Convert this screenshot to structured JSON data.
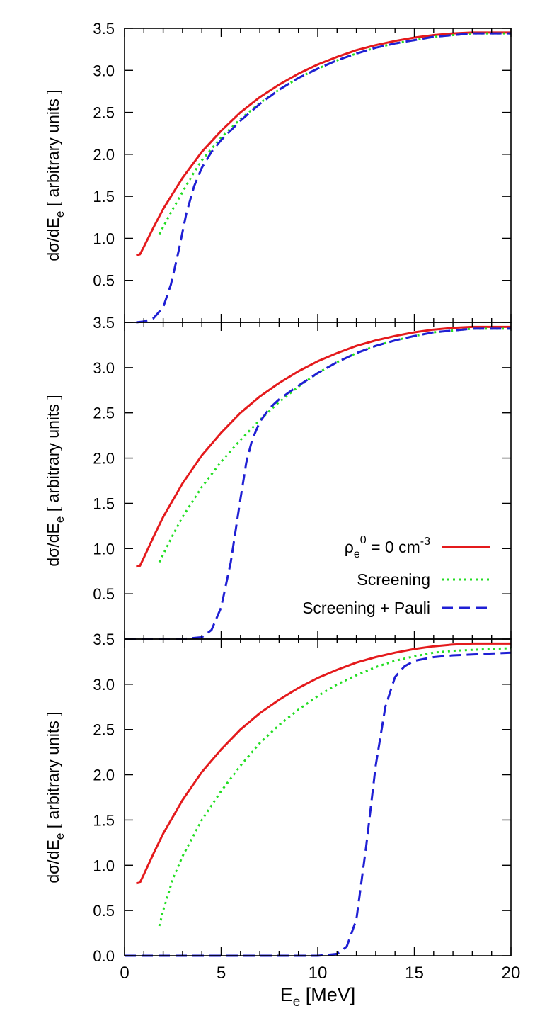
{
  "chart_data": {
    "type": "line",
    "shared_x_axis": {
      "label_main": "E",
      "label_sub": "e",
      "label_unit": " [MeV]",
      "range": [
        0,
        20
      ],
      "ticks": [
        "0",
        "5",
        "10",
        "15",
        "20"
      ]
    },
    "ylabel": {
      "main": "dσ/dE",
      "sub": "e",
      "suffix": " [ arbitrary units ]"
    },
    "legend": {
      "placement": "inside middle panel, lower-right",
      "entries": [
        {
          "key": "s0",
          "parts": [
            "ρ",
            "e",
            "0",
            " = 0 cm",
            "-3"
          ]
        },
        {
          "key": "s1",
          "text": "Screening"
        },
        {
          "key": "s2",
          "text": "Screening + Pauli"
        }
      ]
    },
    "series_styles": [
      {
        "key": "s0",
        "color": "#e41a1c",
        "dash": "solid"
      },
      {
        "key": "s1",
        "color": "#22dd22",
        "dash": "dotted"
      },
      {
        "key": "s2",
        "color": "#1f1fd4",
        "dash": "dashed"
      }
    ],
    "panels": [
      {
        "ylim": [
          0,
          3.5
        ],
        "yticks": [
          "3.5",
          "3.0",
          "2.5",
          "2.0",
          "1.5",
          "1.0",
          "0.5"
        ],
        "series": [
          {
            "key": "s0",
            "points": [
              [
                0.6,
                0.8
              ],
              [
                0.8,
                0.81
              ],
              [
                1,
                0.9
              ],
              [
                1.5,
                1.13
              ],
              [
                2,
                1.35
              ],
              [
                3,
                1.72
              ],
              [
                4,
                2.03
              ],
              [
                5,
                2.28
              ],
              [
                6,
                2.5
              ],
              [
                7,
                2.68
              ],
              [
                8,
                2.83
              ],
              [
                9,
                2.96
              ],
              [
                10,
                3.07
              ],
              [
                11,
                3.16
              ],
              [
                12,
                3.24
              ],
              [
                13,
                3.3
              ],
              [
                14,
                3.35
              ],
              [
                15,
                3.39
              ],
              [
                16,
                3.42
              ],
              [
                17,
                3.44
              ],
              [
                18,
                3.45
              ],
              [
                19,
                3.45
              ],
              [
                20,
                3.45
              ]
            ]
          },
          {
            "key": "s1",
            "points": [
              [
                1.8,
                1.05
              ],
              [
                2.5,
                1.35
              ],
              [
                3,
                1.55
              ],
              [
                3.5,
                1.75
              ],
              [
                4,
                1.93
              ],
              [
                5,
                2.2
              ],
              [
                6,
                2.42
              ],
              [
                7,
                2.61
              ],
              [
                8,
                2.77
              ],
              [
                9,
                2.91
              ],
              [
                10,
                3.02
              ],
              [
                11,
                3.12
              ],
              [
                12,
                3.2
              ],
              [
                13,
                3.27
              ],
              [
                14,
                3.32
              ],
              [
                15,
                3.36
              ],
              [
                16,
                3.4
              ],
              [
                17,
                3.42
              ],
              [
                18,
                3.44
              ],
              [
                19,
                3.44
              ],
              [
                20,
                3.44
              ]
            ]
          },
          {
            "key": "s2",
            "points": [
              [
                0.6,
                0.0
              ],
              [
                1,
                0.01
              ],
              [
                1.5,
                0.05
              ],
              [
                2,
                0.18
              ],
              [
                2.4,
                0.45
              ],
              [
                2.8,
                0.85
              ],
              [
                3.2,
                1.3
              ],
              [
                3.6,
                1.62
              ],
              [
                4,
                1.84
              ],
              [
                4.5,
                2.03
              ],
              [
                5,
                2.17
              ],
              [
                6,
                2.4
              ],
              [
                7,
                2.6
              ],
              [
                8,
                2.77
              ],
              [
                9,
                2.91
              ],
              [
                10,
                3.02
              ],
              [
                11,
                3.12
              ],
              [
                12,
                3.2
              ],
              [
                13,
                3.27
              ],
              [
                14,
                3.32
              ],
              [
                15,
                3.36
              ],
              [
                16,
                3.4
              ],
              [
                17,
                3.42
              ],
              [
                18,
                3.44
              ],
              [
                19,
                3.44
              ],
              [
                20,
                3.44
              ]
            ]
          }
        ]
      },
      {
        "ylim": [
          0,
          3.5
        ],
        "yticks": [
          "3.5",
          "3.0",
          "2.5",
          "2.0",
          "1.5",
          "1.0",
          "0.5"
        ],
        "series": [
          {
            "key": "s0",
            "points": [
              [
                0.6,
                0.8
              ],
              [
                0.8,
                0.81
              ],
              [
                1,
                0.9
              ],
              [
                1.5,
                1.13
              ],
              [
                2,
                1.35
              ],
              [
                3,
                1.72
              ],
              [
                4,
                2.03
              ],
              [
                5,
                2.28
              ],
              [
                6,
                2.5
              ],
              [
                7,
                2.68
              ],
              [
                8,
                2.83
              ],
              [
                9,
                2.96
              ],
              [
                10,
                3.07
              ],
              [
                11,
                3.16
              ],
              [
                12,
                3.24
              ],
              [
                13,
                3.3
              ],
              [
                14,
                3.35
              ],
              [
                15,
                3.39
              ],
              [
                16,
                3.42
              ],
              [
                17,
                3.44
              ],
              [
                18,
                3.45
              ],
              [
                19,
                3.45
              ],
              [
                20,
                3.45
              ]
            ]
          },
          {
            "key": "s1",
            "points": [
              [
                1.8,
                0.85
              ],
              [
                2.5,
                1.15
              ],
              [
                3,
                1.35
              ],
              [
                4,
                1.68
              ],
              [
                5,
                1.96
              ],
              [
                6,
                2.2
              ],
              [
                7,
                2.42
              ],
              [
                8,
                2.62
              ],
              [
                9,
                2.79
              ],
              [
                10,
                2.94
              ],
              [
                11,
                3.06
              ],
              [
                12,
                3.16
              ],
              [
                13,
                3.24
              ],
              [
                14,
                3.3
              ],
              [
                15,
                3.35
              ],
              [
                16,
                3.39
              ],
              [
                17,
                3.41
              ],
              [
                18,
                3.43
              ],
              [
                19,
                3.43
              ],
              [
                20,
                3.43
              ]
            ]
          },
          {
            "key": "s2",
            "points": [
              [
                0,
                0.0
              ],
              [
                3,
                0.0
              ],
              [
                4,
                0.02
              ],
              [
                4.5,
                0.1
              ],
              [
                5,
                0.35
              ],
              [
                5.5,
                0.85
              ],
              [
                6,
                1.55
              ],
              [
                6.3,
                1.95
              ],
              [
                6.6,
                2.2
              ],
              [
                7,
                2.4
              ],
              [
                7.5,
                2.55
              ],
              [
                8,
                2.65
              ],
              [
                9,
                2.8
              ],
              [
                10,
                2.94
              ],
              [
                11,
                3.06
              ],
              [
                12,
                3.16
              ],
              [
                13,
                3.24
              ],
              [
                14,
                3.3
              ],
              [
                15,
                3.35
              ],
              [
                16,
                3.39
              ],
              [
                17,
                3.41
              ],
              [
                18,
                3.43
              ],
              [
                19,
                3.43
              ],
              [
                20,
                3.43
              ]
            ]
          }
        ]
      },
      {
        "ylim": [
          0,
          3.5
        ],
        "yticks": [
          "3.5",
          "3.0",
          "2.5",
          "2.0",
          "1.5",
          "1.0",
          "0.5",
          "0.0"
        ],
        "series": [
          {
            "key": "s0",
            "points": [
              [
                0.6,
                0.8
              ],
              [
                0.8,
                0.81
              ],
              [
                1,
                0.9
              ],
              [
                1.5,
                1.13
              ],
              [
                2,
                1.35
              ],
              [
                3,
                1.72
              ],
              [
                4,
                2.03
              ],
              [
                5,
                2.28
              ],
              [
                6,
                2.5
              ],
              [
                7,
                2.68
              ],
              [
                8,
                2.83
              ],
              [
                9,
                2.96
              ],
              [
                10,
                3.07
              ],
              [
                11,
                3.16
              ],
              [
                12,
                3.24
              ],
              [
                13,
                3.3
              ],
              [
                14,
                3.35
              ],
              [
                15,
                3.39
              ],
              [
                16,
                3.42
              ],
              [
                17,
                3.44
              ],
              [
                18,
                3.45
              ],
              [
                19,
                3.45
              ],
              [
                20,
                3.45
              ]
            ]
          },
          {
            "key": "s1",
            "points": [
              [
                1.8,
                0.33
              ],
              [
                2,
                0.5
              ],
              [
                2.5,
                0.85
              ],
              [
                3,
                1.1
              ],
              [
                4,
                1.5
              ],
              [
                5,
                1.82
              ],
              [
                6,
                2.1
              ],
              [
                7,
                2.35
              ],
              [
                8,
                2.55
              ],
              [
                9,
                2.72
              ],
              [
                10,
                2.87
              ],
              [
                11,
                3.0
              ],
              [
                12,
                3.1
              ],
              [
                13,
                3.19
              ],
              [
                14,
                3.26
              ],
              [
                15,
                3.31
              ],
              [
                16,
                3.35
              ],
              [
                17,
                3.37
              ],
              [
                18,
                3.38
              ],
              [
                19,
                3.39
              ],
              [
                20,
                3.4
              ]
            ]
          },
          {
            "key": "s2",
            "points": [
              [
                0,
                0.0
              ],
              [
                10,
                0.0
              ],
              [
                11,
                0.02
              ],
              [
                11.5,
                0.1
              ],
              [
                12,
                0.4
              ],
              [
                12.5,
                1.2
              ],
              [
                13,
                2.1
              ],
              [
                13.5,
                2.75
              ],
              [
                14,
                3.08
              ],
              [
                14.5,
                3.2
              ],
              [
                15,
                3.26
              ],
              [
                16,
                3.3
              ],
              [
                17,
                3.32
              ],
              [
                18,
                3.33
              ],
              [
                19,
                3.34
              ],
              [
                20,
                3.35
              ]
            ]
          }
        ]
      }
    ]
  }
}
